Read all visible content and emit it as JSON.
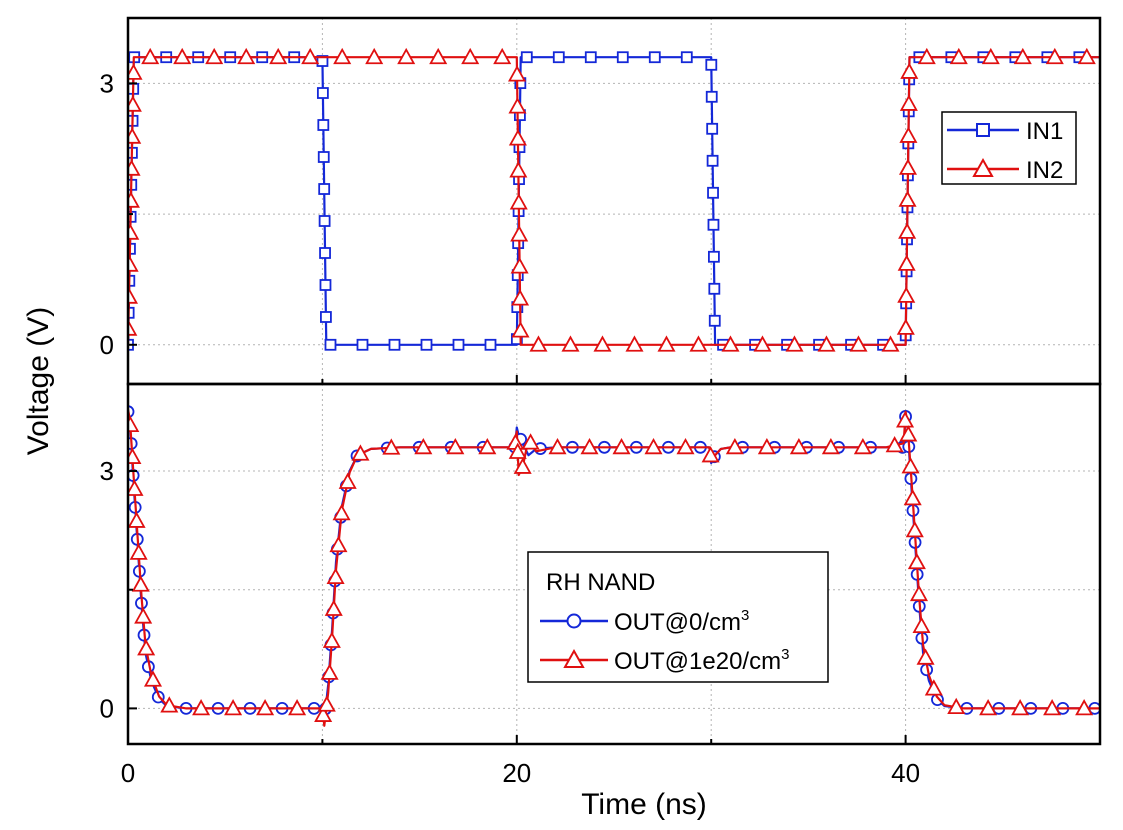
{
  "chart_data": [
    {
      "type": "line",
      "panel": "top",
      "xlabel": "Time (ns)",
      "ylabel": "Voltage (V)",
      "xlim": [
        0,
        50
      ],
      "ylim": [
        -0.45,
        3.75
      ],
      "x_ticks": [
        0,
        20,
        40
      ],
      "y_ticks": [
        0,
        3
      ],
      "grid": true,
      "legend_position": "top-right",
      "colors": {
        "blue": "#1428d8",
        "red": "#e01010"
      },
      "series": [
        {
          "name": "IN1",
          "color": "#1428d8",
          "marker": "square",
          "x": [
            0,
            0.3,
            10,
            10.2,
            20,
            20.2,
            30,
            30.2,
            40,
            40.2,
            50
          ],
          "y": [
            0,
            3.3,
            3.3,
            0,
            0,
            3.3,
            3.3,
            0,
            0,
            3.3,
            3.3
          ]
        },
        {
          "name": "IN2",
          "color": "#e01010",
          "marker": "triangle",
          "x": [
            0,
            0.3,
            20,
            20.2,
            40,
            40.2,
            50
          ],
          "y": [
            0,
            3.3,
            3.3,
            0,
            0,
            3.3,
            3.3
          ]
        }
      ]
    },
    {
      "type": "line",
      "panel": "bottom",
      "xlabel": "Time (ns)",
      "ylabel": "Voltage (V)",
      "xlim": [
        0,
        50
      ],
      "ylim": [
        -0.45,
        4.1
      ],
      "x_ticks": [
        0,
        20,
        40
      ],
      "y_ticks": [
        0,
        3
      ],
      "x_tick_labels": [
        "0",
        "20",
        "40"
      ],
      "y_tick_labels": [
        "0",
        "3"
      ],
      "grid": true,
      "legend_title": "RH NAND",
      "legend_position": "center",
      "series": [
        {
          "name": "OUT@0/cm",
          "name_superscript": "3",
          "color": "#1428d8",
          "marker": "circle",
          "x": [
            0,
            0.1,
            0.3,
            0.5,
            0.7,
            0.9,
            1.2,
            1.6,
            2,
            3,
            5,
            7,
            9,
            10,
            10.1,
            10.3,
            10.5,
            10.7,
            11,
            11.4,
            11.8,
            12.5,
            14,
            16,
            18,
            19.9,
            20,
            20.1,
            20.3,
            20.6,
            21,
            22,
            24,
            26,
            28,
            29.9,
            30,
            30.2,
            30.5,
            31,
            33,
            35,
            37,
            39,
            39.9,
            40,
            40.1,
            40.3,
            40.5,
            40.7,
            40.9,
            41.2,
            41.6,
            42,
            43,
            45,
            47,
            49,
            50
          ],
          "y": [
            3.75,
            3.6,
            2.8,
            2.05,
            1.3,
            0.7,
            0.35,
            0.12,
            0.03,
            0,
            0,
            0,
            0,
            0,
            -0.15,
            0.3,
            1.0,
            1.85,
            2.55,
            3.0,
            3.2,
            3.28,
            3.3,
            3.3,
            3.3,
            3.3,
            3.55,
            3.45,
            3.35,
            3.2,
            3.28,
            3.3,
            3.3,
            3.3,
            3.3,
            3.3,
            3.1,
            3.2,
            3.28,
            3.3,
            3.3,
            3.3,
            3.3,
            3.3,
            3.3,
            3.7,
            3.55,
            2.8,
            2.05,
            1.3,
            0.7,
            0.35,
            0.12,
            0.03,
            0,
            0,
            0,
            0,
            0
          ]
        },
        {
          "name": "OUT@1e20/cm",
          "name_superscript": "3",
          "color": "#e01010",
          "marker": "triangle",
          "x": [
            0,
            0.1,
            0.3,
            0.5,
            0.7,
            0.9,
            1.2,
            1.6,
            2,
            3,
            5,
            7,
            9,
            10,
            10.1,
            10.3,
            10.5,
            10.7,
            11,
            11.4,
            11.8,
            12.5,
            14,
            16,
            18,
            19.9,
            20,
            20.1,
            20.3,
            20.6,
            21,
            22,
            24,
            26,
            28,
            29.9,
            30,
            30.2,
            30.5,
            31,
            33,
            35,
            37,
            39,
            39.9,
            40,
            40.1,
            40.3,
            40.5,
            40.7,
            40.9,
            41.2,
            41.6,
            42,
            43,
            45,
            47,
            49,
            50
          ],
          "y": [
            3.78,
            3.65,
            2.9,
            2.15,
            1.4,
            0.8,
            0.42,
            0.15,
            0.04,
            0,
            0,
            0,
            0,
            0,
            -0.22,
            0.2,
            0.9,
            1.75,
            2.5,
            2.98,
            3.2,
            3.28,
            3.3,
            3.3,
            3.3,
            3.3,
            3.5,
            2.95,
            3.05,
            3.4,
            3.25,
            3.3,
            3.3,
            3.3,
            3.3,
            3.3,
            3.15,
            3.2,
            3.28,
            3.3,
            3.3,
            3.3,
            3.3,
            3.3,
            3.35,
            3.75,
            3.6,
            2.9,
            2.15,
            1.4,
            0.8,
            0.42,
            0.15,
            0.04,
            0,
            0,
            0,
            0,
            0
          ]
        }
      ]
    }
  ]
}
